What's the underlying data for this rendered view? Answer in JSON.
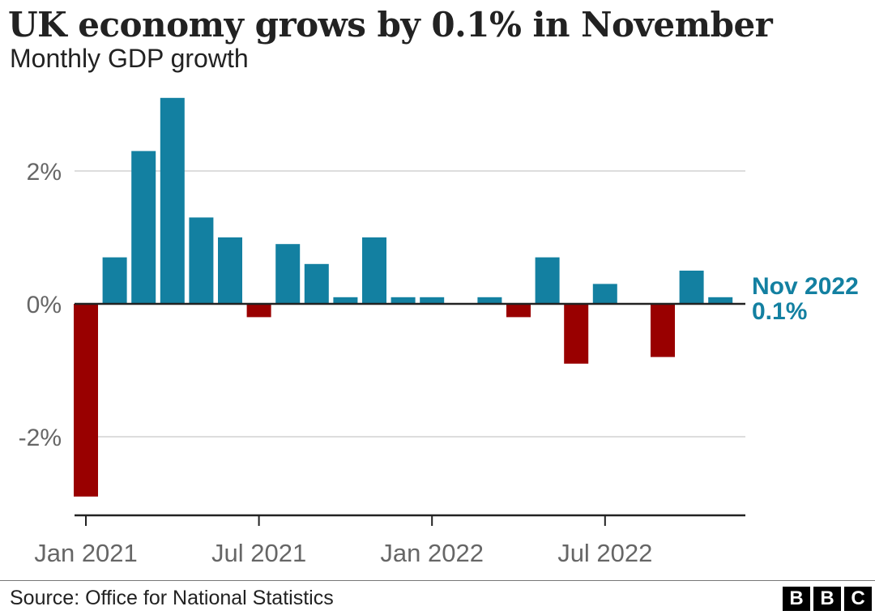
{
  "title": "UK economy grows by 0.1% in November",
  "subtitle": "Monthly GDP growth",
  "source": "Source: Office for National Statistics",
  "logo": [
    "B",
    "B",
    "C"
  ],
  "colors": {
    "positive": "#1380a1",
    "negative": "#990000",
    "grid": "#dddddd",
    "axis": "#222222",
    "tick_text": "#666666"
  },
  "chart_data": {
    "type": "bar",
    "categories": [
      "Jan 2021",
      "Feb 2021",
      "Mar 2021",
      "Apr 2021",
      "May 2021",
      "Jun 2021",
      "Jul 2021",
      "Aug 2021",
      "Sep 2021",
      "Oct 2021",
      "Nov 2021",
      "Dec 2021",
      "Jan 2022",
      "Feb 2022",
      "Mar 2022",
      "Apr 2022",
      "May 2022",
      "Jun 2022",
      "Jul 2022",
      "Aug 2022",
      "Sep 2022",
      "Oct 2022",
      "Nov 2022"
    ],
    "values": [
      -2.9,
      0.7,
      2.3,
      3.1,
      1.3,
      1.0,
      -0.2,
      0.9,
      0.6,
      0.1,
      1.0,
      0.1,
      0.1,
      0.0,
      0.1,
      -0.2,
      0.7,
      -0.9,
      0.3,
      0.0,
      -0.8,
      0.5,
      0.1
    ],
    "ylim": [
      -3.2,
      3.2
    ],
    "yticks": [
      {
        "value": 2,
        "label": "2%"
      },
      {
        "value": 0,
        "label": "0%"
      },
      {
        "value": -2,
        "label": "-2%"
      }
    ],
    "xticks": [
      {
        "index": 0,
        "label": "Jan 2021"
      },
      {
        "index": 6,
        "label": "Jul 2021"
      },
      {
        "index": 12,
        "label": "Jan 2022"
      },
      {
        "index": 18,
        "label": "Jul 2022"
      }
    ],
    "annotation": {
      "index": 22,
      "line1": "Nov 2022",
      "line2": "0.1%"
    },
    "grid": true
  }
}
